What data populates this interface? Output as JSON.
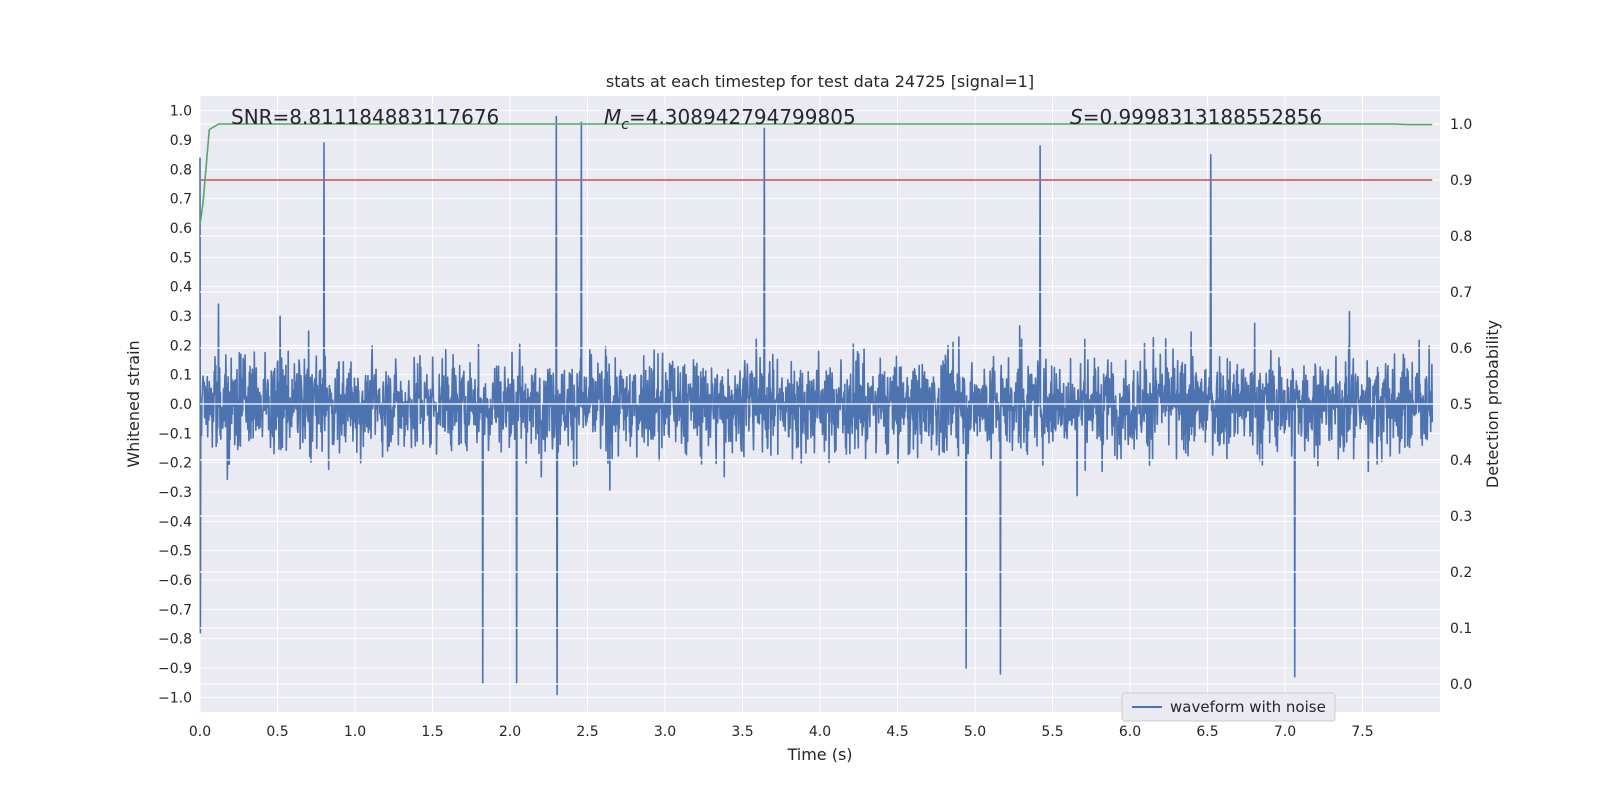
{
  "chart_data": {
    "type": "line",
    "title": "stats at each timestep for test data 24725 [signal=1]",
    "xlabel": "Time (s)",
    "ylabel": "Whitened strain",
    "ylabel_right": "Detection probability",
    "xlim": [
      0.0,
      8.0
    ],
    "ylim": [
      -1.05,
      1.05
    ],
    "ylim_right": [
      -0.05,
      1.05
    ],
    "x_ticks": [
      0.0,
      0.5,
      1.0,
      1.5,
      2.0,
      2.5,
      3.0,
      3.5,
      4.0,
      4.5,
      5.0,
      5.5,
      6.0,
      6.5,
      7.0,
      7.5
    ],
    "x_tick_labels": [
      "0.0",
      "0.5",
      "1.0",
      "1.5",
      "2.0",
      "2.5",
      "3.0",
      "3.5",
      "4.0",
      "4.5",
      "5.0",
      "5.5",
      "6.0",
      "6.5",
      "7.0",
      "7.5"
    ],
    "y_ticks": [
      1.0,
      0.9,
      0.8,
      0.7,
      0.6,
      0.5,
      0.4,
      0.3,
      0.2,
      0.1,
      0.0,
      -0.1,
      -0.2,
      -0.3,
      -0.4,
      -0.5,
      -0.6,
      -0.7,
      -0.8,
      -0.9,
      -1.0
    ],
    "y_tick_labels": [
      "1.0",
      "0.9",
      "0.8",
      "0.7",
      "0.6",
      "0.5",
      "0.4",
      "0.3",
      "0.2",
      "0.1",
      "0.0",
      "−0.1",
      "−0.2",
      "−0.3",
      "−0.4",
      "−0.5",
      "−0.6",
      "−0.7",
      "−0.8",
      "−0.9",
      "−1.0"
    ],
    "y_right_ticks": [
      1.0,
      0.9,
      0.8,
      0.7,
      0.6,
      0.5,
      0.4,
      0.3,
      0.2,
      0.1,
      0.0
    ],
    "y_right_tick_labels": [
      "1.0",
      "0.9",
      "0.8",
      "0.7",
      "0.6",
      "0.5",
      "0.4",
      "0.3",
      "0.2",
      "0.1",
      "0.0"
    ],
    "annotations": {
      "snr": "SNR=8.811184883117676",
      "mc_symbol": "M",
      "mc_subscript": "c",
      "mc_value": "=4.308942794799805",
      "s_symbol": "S",
      "s_value": "=0.9998313188552856"
    },
    "series": [
      {
        "name": "waveform with noise",
        "axis": "left",
        "color": "#4c72b0",
        "style": "dense noisy strain, bulk within ±0.45, spikes to ±1.0",
        "notable_peaks": [
          {
            "x": 0.8,
            "y": 0.89
          },
          {
            "x": 2.3,
            "y": 0.98
          },
          {
            "x": 2.46,
            "y": 0.96
          },
          {
            "x": 3.64,
            "y": 0.94
          },
          {
            "x": 5.42,
            "y": 0.88
          },
          {
            "x": 6.52,
            "y": 0.85
          }
        ],
        "notable_troughs": [
          {
            "x": 2.3,
            "y": -0.99
          },
          {
            "x": 1.82,
            "y": -0.95
          },
          {
            "x": 2.04,
            "y": -0.95
          },
          {
            "x": 7.06,
            "y": -0.93
          },
          {
            "x": 4.94,
            "y": -0.9
          },
          {
            "x": 5.16,
            "y": -0.92
          }
        ]
      },
      {
        "name": "detection probability",
        "axis": "right",
        "color": "#55a868",
        "x": [
          0.0,
          0.02,
          0.06,
          0.12,
          0.2,
          1.0,
          3.0,
          5.0,
          7.0,
          7.7,
          7.8,
          7.95
        ],
        "y": [
          0.82,
          0.86,
          0.99,
          1.0,
          1.0,
          1.0,
          1.0,
          1.0,
          1.0,
          1.0,
          0.999,
          0.999
        ]
      },
      {
        "name": "threshold",
        "axis": "right",
        "color": "#c44e52",
        "x": [
          0.0,
          7.95
        ],
        "y": [
          0.9,
          0.9
        ]
      }
    ],
    "legend": {
      "location": "lower-right",
      "entries": [
        "waveform with noise"
      ]
    },
    "grid": true
  },
  "colors": {
    "axes_background": "#eaeaf2",
    "grid": "#ffffff",
    "waveform": "#4c72b0",
    "probability": "#55a868",
    "threshold": "#c44e52"
  }
}
